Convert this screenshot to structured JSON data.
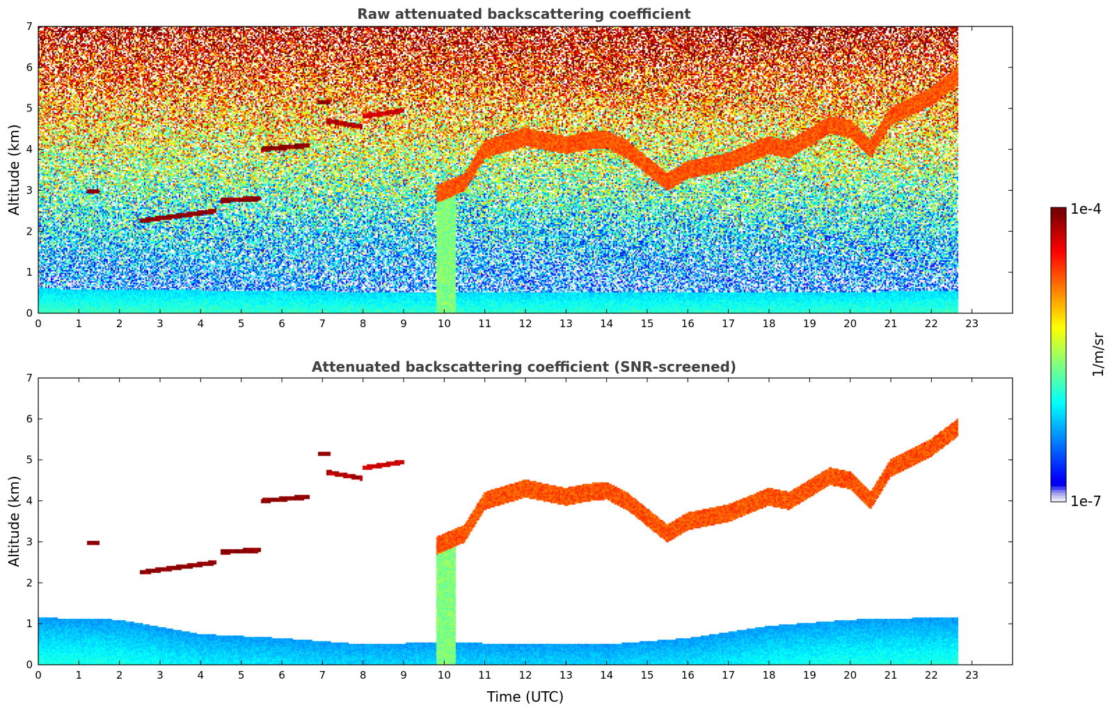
{
  "chart_data": [
    {
      "type": "heatmap",
      "title": "Raw attenuated backscattering coefficient",
      "xlabel": "",
      "ylabel": "Altitude (km)",
      "xlim": [
        0,
        24
      ],
      "ylim": [
        0,
        7
      ],
      "x_ticks": [
        0,
        1,
        2,
        3,
        4,
        5,
        6,
        7,
        8,
        9,
        10,
        11,
        12,
        13,
        14,
        15,
        16,
        17,
        18,
        19,
        20,
        21,
        22,
        23
      ],
      "y_ticks": [
        0,
        1,
        2,
        3,
        4,
        5,
        6,
        7
      ],
      "data_end_time": 22.67,
      "value_description": "log10 attenuated backscatter (1/m/sr); noisy background increasing with altitude",
      "features": [
        {
          "kind": "boundary_layer",
          "x": [
            0,
            10,
            18.5,
            22.67
          ],
          "top_km": [
            0.6,
            0.5,
            0.5,
            0.55
          ],
          "log10": -6.1
        },
        {
          "kind": "cloud",
          "x": [
            2.5,
            4.4
          ],
          "alt_km": [
            2.25,
            2.5
          ],
          "log10": -4.1
        },
        {
          "kind": "cloud",
          "x": [
            4.5,
            5.5
          ],
          "alt_km": [
            2.75,
            2.8
          ],
          "log10": -4.1
        },
        {
          "kind": "cloud",
          "x": [
            1.2,
            1.5
          ],
          "alt_km": [
            2.98,
            2.98
          ],
          "log10": -4.1
        },
        {
          "kind": "cloud",
          "x": [
            5.5,
            6.7
          ],
          "alt_km": [
            4.0,
            4.1
          ],
          "log10": -4.1
        },
        {
          "kind": "cloud",
          "x": [
            6.9,
            7.2
          ],
          "alt_km": [
            5.15,
            5.15
          ],
          "log10": -4.1
        },
        {
          "kind": "cloud",
          "x": [
            7.1,
            8.0
          ],
          "alt_km": [
            4.7,
            4.55
          ],
          "log10": -4.2
        },
        {
          "kind": "cloud",
          "x": [
            8.0,
            9.0
          ],
          "alt_km": [
            4.8,
            4.95
          ],
          "log10": -4.3
        },
        {
          "kind": "aerosol_layer",
          "x": [
            9.8,
            10.5,
            11,
            12,
            13,
            13.5,
            14,
            14.5,
            15,
            15.5,
            16,
            17,
            18,
            18.5,
            19,
            19.5,
            20,
            20.5,
            21,
            22,
            22.67
          ],
          "alt_km": [
            2.9,
            3.2,
            4.0,
            4.3,
            4.1,
            4.2,
            4.25,
            4.0,
            3.6,
            3.2,
            3.5,
            3.7,
            4.1,
            4.0,
            4.3,
            4.6,
            4.5,
            4.0,
            4.8,
            5.3,
            5.8
          ],
          "log10": -4.7
        }
      ]
    },
    {
      "type": "heatmap",
      "title": "Attenuated backscattering coefficient (SNR-screened)",
      "xlabel": "Time (UTC)",
      "ylabel": "Altitude (km)",
      "xlim": [
        0,
        24
      ],
      "ylim": [
        0,
        7
      ],
      "x_ticks": [
        0,
        1,
        2,
        3,
        4,
        5,
        6,
        7,
        8,
        9,
        10,
        11,
        12,
        13,
        14,
        15,
        16,
        17,
        18,
        19,
        20,
        21,
        22,
        23
      ],
      "y_ticks": [
        0,
        1,
        2,
        3,
        4,
        5,
        6,
        7
      ],
      "data_end_time": 22.67,
      "value_description": "log10 attenuated backscatter (1/m/sr) after SNR screening; low-SNR pixels blank",
      "boundary_layer_top_km": {
        "x": [
          0,
          2,
          4,
          6,
          8,
          10,
          12,
          14,
          16,
          18,
          20,
          22,
          22.67
        ],
        "top_km": [
          1.15,
          1.1,
          0.75,
          0.65,
          0.5,
          0.55,
          0.5,
          0.5,
          0.65,
          0.95,
          1.1,
          1.15,
          1.15
        ]
      }
    }
  ],
  "colorbar": {
    "label": "1/m/sr",
    "max_label": "1e-4",
    "min_label": "1e-7",
    "log10_range": [
      -7,
      -4
    ],
    "colormap": "jet",
    "low_end_colors": [
      "#e6e6f8",
      "#c8c8f0",
      "#a8a8ec",
      "#8080f0",
      "#4040f8"
    ]
  }
}
